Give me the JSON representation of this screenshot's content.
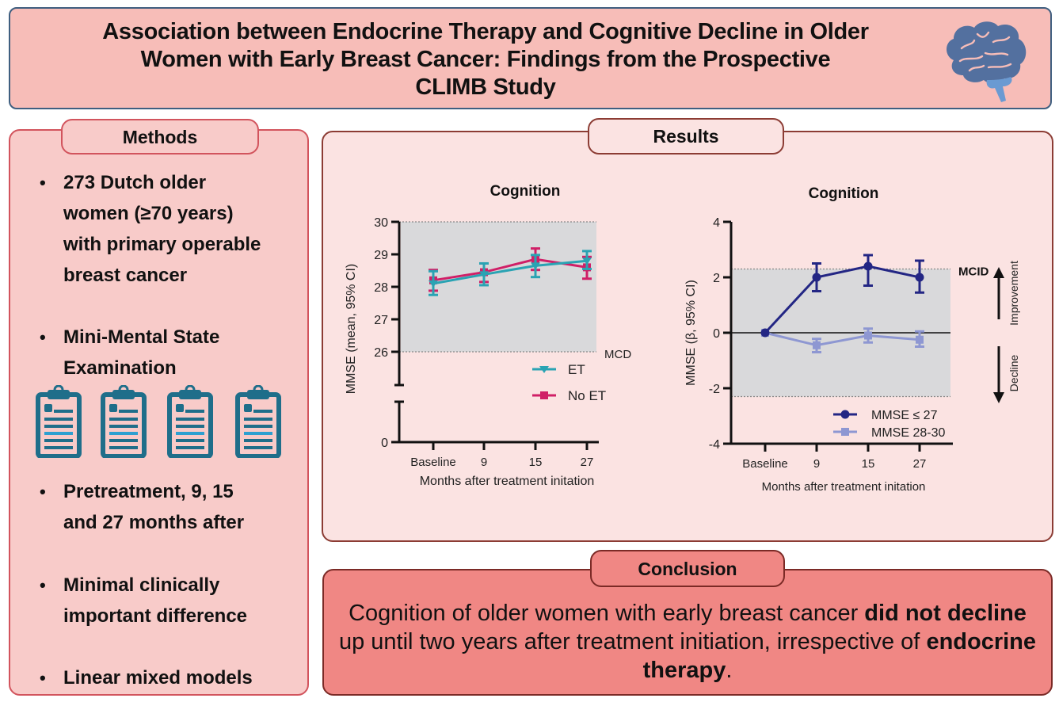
{
  "title": {
    "lines": [
      "Association between Endocrine Therapy and Cognitive Decline in Older",
      "Women with Early Breast Cancer: Findings from the Prospective",
      "CLIMB Study"
    ],
    "icon": "brain-icon"
  },
  "colors": {
    "title_bg": "#f7bdb8",
    "title_border": "#3f5f80",
    "methods_bg": "#f8cbc9",
    "methods_border": "#d2545d",
    "results_bg": "#fbe3e2",
    "results_border": "#8c3c34",
    "conclusion_bg": "#f08784",
    "conclusion_border": "#7b2a26",
    "brain_dark": "#53709f",
    "brain_light": "#6a9ad2",
    "clipboard": "#1f6e8a",
    "clipboard_accent": "#2e9fd0",
    "et": "#2aa3b3",
    "no_et": "#d01f67",
    "mmse_low": "#232684",
    "mmse_high": "#8e97d2",
    "shade": "#d9d9db"
  },
  "methods": {
    "header": "Methods",
    "items": [
      {
        "lines": [
          "273 Dutch older",
          "women (≥70 years)",
          "with primary operable",
          "breast cancer"
        ]
      },
      {
        "lines": [
          "Mini-Mental State",
          "Examination"
        ]
      },
      {
        "lines": [
          "Pretreatment, 9, 15",
          "and 27 months after"
        ]
      },
      {
        "lines": [
          "Minimal clinically",
          "important difference"
        ]
      },
      {
        "lines": [
          "Linear mixed models"
        ]
      }
    ],
    "bullet": "•",
    "clipboard_icon_count": 4
  },
  "results": {
    "header": "Results"
  },
  "chart_data": [
    {
      "type": "line",
      "title": "Cognition",
      "xlabel": "Months after treatment initation",
      "ylabel": "MMSE (mean, 95% CI)",
      "categories": [
        "Baseline",
        "9",
        "15",
        "27"
      ],
      "y_ticks": [
        0,
        26,
        27,
        28,
        29,
        30
      ],
      "y_axis_break": [
        0,
        26
      ],
      "ylim": [
        26,
        30
      ],
      "shaded_band": [
        26,
        30
      ],
      "reference_lines": [
        {
          "value": 30,
          "label": ""
        },
        {
          "value": 26,
          "label": "MCD"
        }
      ],
      "legend": "right-inside-lower",
      "series": [
        {
          "name": "ET",
          "marker": "triangle-down",
          "values": [
            28.1,
            28.38,
            28.65,
            28.8
          ],
          "ci_low": [
            27.75,
            28.05,
            28.3,
            28.55
          ],
          "ci_high": [
            28.48,
            28.72,
            28.98,
            29.1
          ]
        },
        {
          "name": "No ET",
          "marker": "square",
          "values": [
            28.2,
            28.45,
            28.85,
            28.6
          ],
          "ci_low": [
            27.88,
            28.15,
            28.52,
            28.25
          ],
          "ci_high": [
            28.52,
            28.72,
            29.18,
            28.92
          ]
        }
      ]
    },
    {
      "type": "line",
      "title": "Cognition",
      "xlabel": "Months after treatment initation",
      "ylabel": "MMSE (β, 95% CI)",
      "categories": [
        "Baseline",
        "9",
        "15",
        "27"
      ],
      "y_ticks": [
        -4,
        -2,
        0,
        2,
        4
      ],
      "ylim": [
        -4,
        4
      ],
      "shaded_band": [
        -2.3,
        2.3
      ],
      "reference_lines": [
        {
          "value": 2.3,
          "label": "MCID"
        },
        {
          "value": -2.3,
          "label": ""
        },
        {
          "value": 0,
          "label": ""
        }
      ],
      "annotations": [
        {
          "text": "Improvement",
          "direction": "up"
        },
        {
          "text": "Decline",
          "direction": "down"
        }
      ],
      "legend": "bottom-right-inside",
      "series": [
        {
          "name": "MMSE ≤ 27",
          "marker": "circle",
          "values": [
            0,
            2.0,
            2.4,
            2.0
          ],
          "ci_low": [
            0,
            1.5,
            1.7,
            1.45
          ],
          "ci_high": [
            0,
            2.5,
            2.8,
            2.6
          ]
        },
        {
          "name": "MMSE 28-30",
          "marker": "square",
          "values": [
            0,
            -0.45,
            -0.1,
            -0.25
          ],
          "ci_low": [
            0,
            -0.7,
            -0.35,
            -0.5
          ],
          "ci_high": [
            0,
            -0.22,
            0.15,
            0.05
          ]
        }
      ]
    }
  ],
  "conclusion": {
    "header": "Conclusion",
    "segments": [
      {
        "text": "Cognition of older women with early breast cancer ",
        "bold": false
      },
      {
        "text": "did not decline",
        "bold": true
      },
      {
        "text": " up until two years after treatment initiation, irrespective of ",
        "bold": false
      },
      {
        "text": "endocrine therapy",
        "bold": true
      },
      {
        "text": ".",
        "bold": false
      }
    ]
  }
}
